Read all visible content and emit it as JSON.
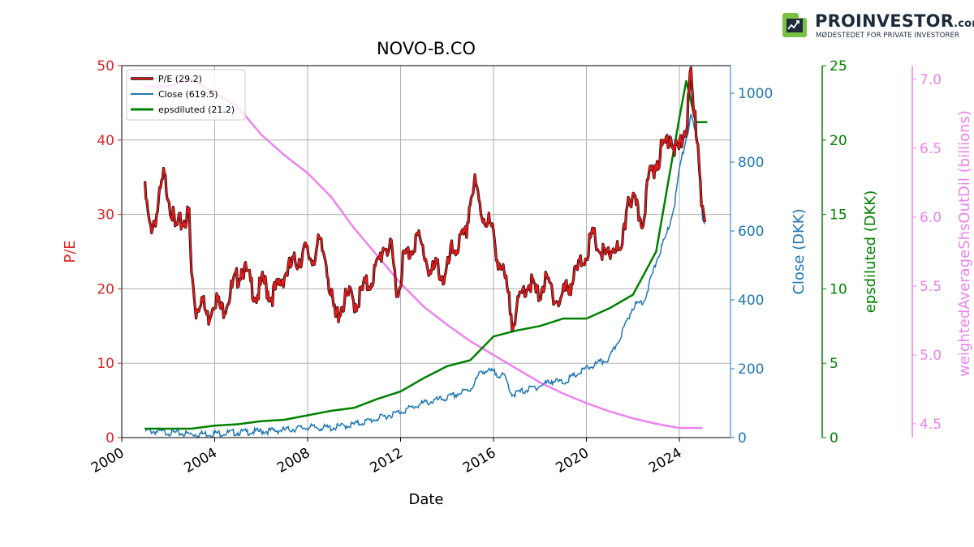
{
  "brand": {
    "name": "PROINVESTOR",
    "domain": ".com",
    "tagline": "MØDESTEDET FOR PRIVATE INVESTORER"
  },
  "chart_data": {
    "type": "line",
    "title": "NOVO-B.CO",
    "xlabel": "Date",
    "x_ticks": [
      "2000",
      "2004",
      "2008",
      "2012",
      "2016",
      "2020",
      "2024"
    ],
    "grid": true,
    "legend_placement": "top-left",
    "axes": [
      {
        "id": "pe",
        "label": "P/E",
        "color": "#d62728",
        "ylim": [
          0,
          50
        ],
        "ticks": [
          "0",
          "10",
          "20",
          "30",
          "40",
          "50"
        ],
        "side": "left"
      },
      {
        "id": "close",
        "label": "Close (DKK)",
        "color": "#1f77b4",
        "ylim": [
          0,
          1080
        ],
        "ticks": [
          "0",
          "200",
          "400",
          "600",
          "800",
          "1000"
        ],
        "side": "right"
      },
      {
        "id": "eps",
        "label": "epsdiluted (DKK)",
        "color": "#008000",
        "ylim": [
          0,
          25
        ],
        "ticks": [
          "0",
          "5",
          "10",
          "15",
          "20",
          "25"
        ],
        "side": "right"
      },
      {
        "id": "shares",
        "label": "weightedAverageShsOutDil (billions)",
        "color": "#ee82ee",
        "ylim": [
          4.4,
          7.1
        ],
        "ticks": [
          "4.5",
          "5.0",
          "5.5",
          "6.0",
          "6.5",
          "7.0"
        ],
        "side": "right"
      }
    ],
    "series": [
      {
        "name": "P/E (29.2)",
        "axis": "pe",
        "color": "#e31a1c",
        "points": [
          [
            2001.0,
            33
          ],
          [
            2001.2,
            28
          ],
          [
            2001.5,
            30
          ],
          [
            2001.8,
            35
          ],
          [
            2002.0,
            33
          ],
          [
            2002.3,
            28
          ],
          [
            2002.6,
            29
          ],
          [
            2002.9,
            30
          ],
          [
            2003.0,
            22
          ],
          [
            2003.2,
            17
          ],
          [
            2003.4,
            19
          ],
          [
            2003.7,
            16
          ],
          [
            2004.0,
            19
          ],
          [
            2004.3,
            17
          ],
          [
            2004.6,
            19
          ],
          [
            2004.9,
            21
          ],
          [
            2005.2,
            23
          ],
          [
            2005.5,
            21
          ],
          [
            2005.8,
            19
          ],
          [
            2006.1,
            21
          ],
          [
            2006.4,
            19
          ],
          [
            2006.7,
            20
          ],
          [
            2007.0,
            22
          ],
          [
            2007.3,
            23
          ],
          [
            2007.6,
            24
          ],
          [
            2007.9,
            25
          ],
          [
            2008.2,
            24
          ],
          [
            2008.5,
            26
          ],
          [
            2008.8,
            24
          ],
          [
            2009.0,
            19
          ],
          [
            2009.2,
            16
          ],
          [
            2009.5,
            18
          ],
          [
            2009.8,
            19
          ],
          [
            2010.1,
            18
          ],
          [
            2010.4,
            20
          ],
          [
            2010.7,
            21
          ],
          [
            2011.0,
            23
          ],
          [
            2011.3,
            26
          ],
          [
            2011.6,
            25
          ],
          [
            2011.9,
            19
          ],
          [
            2012.1,
            24
          ],
          [
            2012.4,
            25
          ],
          [
            2012.7,
            27
          ],
          [
            2013.0,
            25
          ],
          [
            2013.3,
            22
          ],
          [
            2013.6,
            23
          ],
          [
            2013.9,
            21
          ],
          [
            2014.2,
            25
          ],
          [
            2014.5,
            26
          ],
          [
            2014.8,
            27
          ],
          [
            2015.0,
            32
          ],
          [
            2015.2,
            34
          ],
          [
            2015.5,
            30
          ],
          [
            2015.8,
            29
          ],
          [
            2016.0,
            27
          ],
          [
            2016.2,
            24
          ],
          [
            2016.5,
            21
          ],
          [
            2016.8,
            16
          ],
          [
            2017.0,
            17
          ],
          [
            2017.3,
            20
          ],
          [
            2017.6,
            21
          ],
          [
            2017.9,
            19
          ],
          [
            2018.2,
            21
          ],
          [
            2018.5,
            20
          ],
          [
            2018.8,
            18
          ],
          [
            2019.1,
            20
          ],
          [
            2019.4,
            21
          ],
          [
            2019.7,
            23
          ],
          [
            2020.0,
            25
          ],
          [
            2020.3,
            27
          ],
          [
            2020.6,
            25
          ],
          [
            2020.9,
            24
          ],
          [
            2021.2,
            26
          ],
          [
            2021.5,
            24
          ],
          [
            2021.8,
            33
          ],
          [
            2022.1,
            31
          ],
          [
            2022.4,
            29
          ],
          [
            2022.7,
            35
          ],
          [
            2023.0,
            37
          ],
          [
            2023.3,
            39
          ],
          [
            2023.6,
            41
          ],
          [
            2023.9,
            38
          ],
          [
            2024.1,
            40
          ],
          [
            2024.3,
            42
          ],
          [
            2024.5,
            49
          ],
          [
            2024.6,
            44
          ],
          [
            2024.8,
            40
          ],
          [
            2024.9,
            35
          ],
          [
            2025.0,
            30
          ],
          [
            2025.1,
            29
          ]
        ]
      },
      {
        "name": "Close (619.5)",
        "axis": "close",
        "color": "#1f77b4",
        "points": [
          [
            2001.0,
            20
          ],
          [
            2002.0,
            15
          ],
          [
            2003.0,
            10
          ],
          [
            2004.0,
            12
          ],
          [
            2005.0,
            15
          ],
          [
            2006.0,
            18
          ],
          [
            2007.0,
            22
          ],
          [
            2008.0,
            30
          ],
          [
            2009.0,
            28
          ],
          [
            2010.0,
            38
          ],
          [
            2011.0,
            55
          ],
          [
            2012.0,
            75
          ],
          [
            2013.0,
            100
          ],
          [
            2014.0,
            115
          ],
          [
            2015.0,
            140
          ],
          [
            2015.5,
            195
          ],
          [
            2016.0,
            190
          ],
          [
            2016.5,
            175
          ],
          [
            2016.8,
            125
          ],
          [
            2017.5,
            140
          ],
          [
            2018.0,
            150
          ],
          [
            2018.5,
            165
          ],
          [
            2019.0,
            160
          ],
          [
            2019.5,
            180
          ],
          [
            2020.0,
            200
          ],
          [
            2020.5,
            215
          ],
          [
            2021.0,
            230
          ],
          [
            2021.5,
            300
          ],
          [
            2022.0,
            380
          ],
          [
            2022.5,
            400
          ],
          [
            2023.0,
            510
          ],
          [
            2023.5,
            600
          ],
          [
            2023.8,
            680
          ],
          [
            2024.0,
            780
          ],
          [
            2024.3,
            870
          ],
          [
            2024.5,
            930
          ],
          [
            2024.8,
            860
          ],
          [
            2025.0,
            640
          ],
          [
            2025.1,
            619.5
          ]
        ]
      },
      {
        "name": "epsdiluted (21.2)",
        "axis": "eps",
        "color": "#008000",
        "points": [
          [
            2001.0,
            0.6
          ],
          [
            2003.0,
            0.6
          ],
          [
            2004.0,
            0.8
          ],
          [
            2005.0,
            0.9
          ],
          [
            2006.0,
            1.1
          ],
          [
            2007.0,
            1.2
          ],
          [
            2008.0,
            1.5
          ],
          [
            2009.0,
            1.8
          ],
          [
            2010.0,
            2.0
          ],
          [
            2011.0,
            2.6
          ],
          [
            2012.0,
            3.1
          ],
          [
            2013.0,
            4.0
          ],
          [
            2014.0,
            4.8
          ],
          [
            2015.0,
            5.2
          ],
          [
            2016.0,
            6.8
          ],
          [
            2017.0,
            7.2
          ],
          [
            2018.0,
            7.5
          ],
          [
            2019.0,
            8.0
          ],
          [
            2020.0,
            8.0
          ],
          [
            2021.0,
            8.7
          ],
          [
            2022.0,
            9.6
          ],
          [
            2023.0,
            12.5
          ],
          [
            2024.0,
            21.5
          ],
          [
            2024.3,
            24.0
          ],
          [
            2024.7,
            21.2
          ],
          [
            2025.2,
            21.2
          ]
        ]
      },
      {
        "name": "weightedAverageShsOutDil",
        "axis": "shares",
        "color": "#ee82ee",
        "points": [
          [
            2001.0,
            6.95
          ],
          [
            2002.0,
            6.95
          ],
          [
            2003.0,
            7.0
          ],
          [
            2004.0,
            6.9
          ],
          [
            2005.0,
            6.8
          ],
          [
            2006.0,
            6.6
          ],
          [
            2007.0,
            6.45
          ],
          [
            2008.0,
            6.32
          ],
          [
            2009.0,
            6.15
          ],
          [
            2010.0,
            5.92
          ],
          [
            2011.0,
            5.72
          ],
          [
            2012.0,
            5.52
          ],
          [
            2013.0,
            5.35
          ],
          [
            2014.0,
            5.22
          ],
          [
            2015.0,
            5.1
          ],
          [
            2016.0,
            5.0
          ],
          [
            2017.0,
            4.9
          ],
          [
            2018.0,
            4.8
          ],
          [
            2019.0,
            4.72
          ],
          [
            2020.0,
            4.65
          ],
          [
            2021.0,
            4.59
          ],
          [
            2022.0,
            4.54
          ],
          [
            2023.0,
            4.5
          ],
          [
            2024.0,
            4.47
          ],
          [
            2025.0,
            4.47
          ]
        ]
      }
    ]
  }
}
